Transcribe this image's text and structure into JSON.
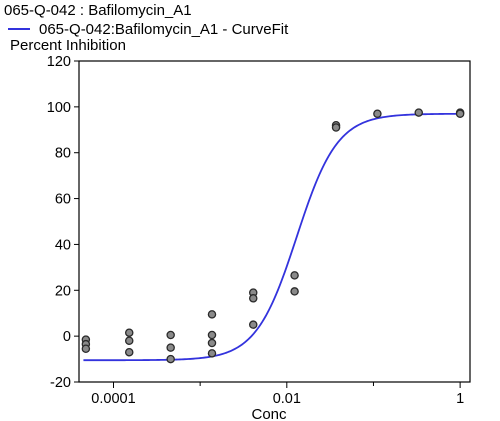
{
  "chart_data": {
    "type": "scatter",
    "title": "065-Q-042  : Bafilomycin_A1",
    "ylabel": "Percent Inhibition",
    "xlabel": "Conc",
    "x_scale": "log",
    "xlim": [
      4e-05,
      1.3
    ],
    "ylim": [
      -20,
      120
    ],
    "y_ticks": [
      -20,
      0,
      20,
      40,
      60,
      80,
      100,
      120
    ],
    "x_ticks": [
      0.0001,
      0.01,
      1
    ],
    "x_tick_labels": [
      "0.0001",
      "0.01",
      "1"
    ],
    "grid": false,
    "legend_position": "top-left",
    "colors": {
      "curve": "#3333dd",
      "point_fill": "#8a8a8a",
      "point_stroke": "#2a2a2a"
    },
    "series": [
      {
        "type": "scatter",
        "points": [
          {
            "x": 4.8e-05,
            "y": -1.5
          },
          {
            "x": 4.8e-05,
            "y": -3.5
          },
          {
            "x": 4.8e-05,
            "y": -5.5
          },
          {
            "x": 0.000152,
            "y": 1.5
          },
          {
            "x": 0.000152,
            "y": -2.0
          },
          {
            "x": 0.000152,
            "y": -7.0
          },
          {
            "x": 0.000457,
            "y": 0.5
          },
          {
            "x": 0.000457,
            "y": -5.0
          },
          {
            "x": 0.000457,
            "y": -10.0
          },
          {
            "x": 0.00137,
            "y": 9.5
          },
          {
            "x": 0.00137,
            "y": 0.5
          },
          {
            "x": 0.00137,
            "y": -3.0
          },
          {
            "x": 0.00137,
            "y": -7.5
          },
          {
            "x": 0.0041,
            "y": 19.0
          },
          {
            "x": 0.0041,
            "y": 16.5
          },
          {
            "x": 0.0041,
            "y": 5.0
          },
          {
            "x": 0.0123,
            "y": 26.5
          },
          {
            "x": 0.0123,
            "y": 19.5
          },
          {
            "x": 0.037,
            "y": 92.0
          },
          {
            "x": 0.037,
            "y": 91.0
          },
          {
            "x": 0.111,
            "y": 97.0
          },
          {
            "x": 0.333,
            "y": 97.5
          },
          {
            "x": 1.0,
            "y": 97.5
          },
          {
            "x": 1.0,
            "y": 97.0
          }
        ]
      },
      {
        "name": "065-Q-042:Bafilomycin_A1 - CurveFit",
        "type": "line",
        "model": "4PL",
        "bottom": -10.5,
        "top": 97.0,
        "ec50": 0.013,
        "hill": 1.85
      }
    ]
  }
}
